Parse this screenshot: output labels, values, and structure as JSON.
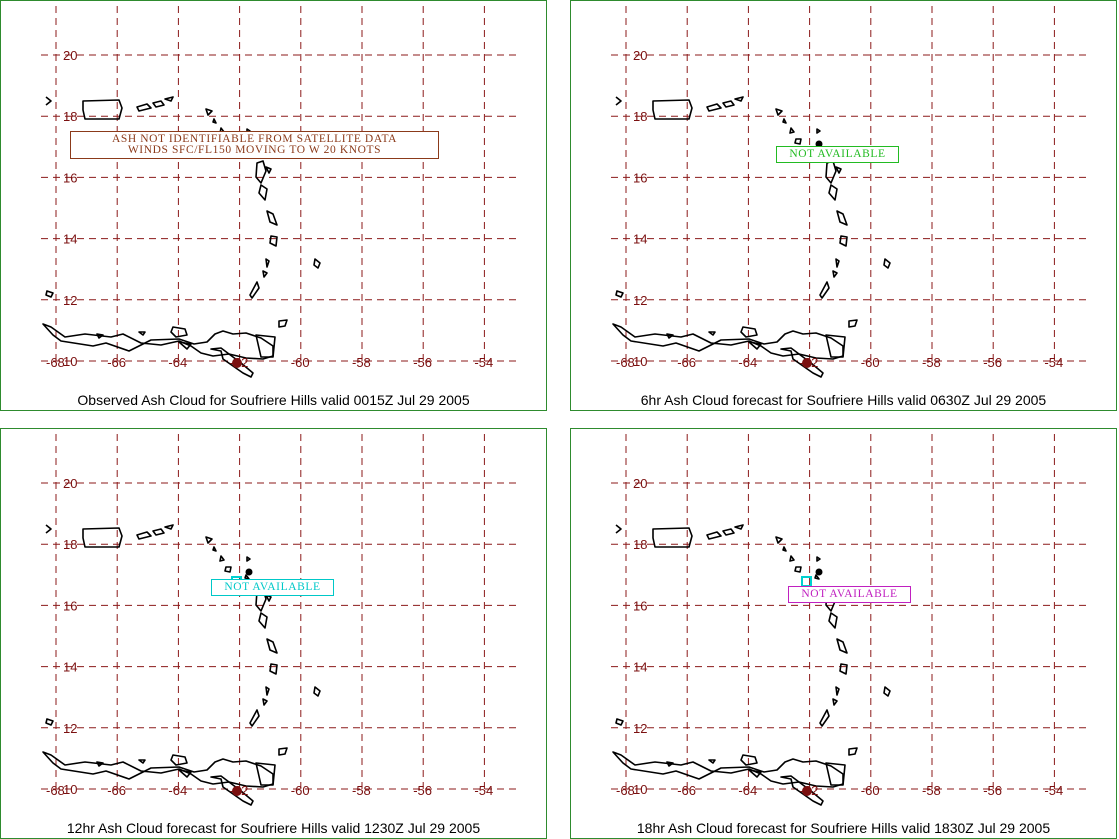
{
  "colors": {
    "grid": "#8b1a1a",
    "coast": "#000000",
    "border": "#2e8b2e",
    "volcano": "#7b1010",
    "marker": "#00d0d0"
  },
  "axes": {
    "lat_labels": [
      "20",
      "18",
      "16",
      "14",
      "12",
      "10"
    ],
    "lon_labels": [
      "-68",
      "-66",
      "-64",
      "-62",
      "-60",
      "-58",
      "-56",
      "-54"
    ]
  },
  "panels": [
    {
      "caption": "Observed Ash Cloud for Soufriere  Hills valid 0015Z Jul 29 2005",
      "note_lines": [
        "ASH NOT IDENTIFIABLE FROM SATELLITE DATA",
        "WINDS SFC/FL150 MOVING TO W 20 KNOTS"
      ],
      "note_color": "#8b3a1a"
    },
    {
      "caption": "6hr Ash Cloud forecast for Soufriere  Hills valid 0630Z Jul 29 2005",
      "note_lines": [
        "NOT AVAILABLE"
      ],
      "note_color": "#22bb22"
    },
    {
      "caption": "12hr Ash Cloud forecast for Soufriere  Hills valid 1230Z Jul 29 2005",
      "note_lines": [
        "NOT AVAILABLE"
      ],
      "note_color": "#00c8c8"
    },
    {
      "caption": "18hr Ash Cloud forecast for Soufriere  Hills valid 1830Z Jul 29 2005",
      "note_lines": [
        "NOT AVAILABLE"
      ],
      "note_color": "#c020c0"
    }
  ]
}
